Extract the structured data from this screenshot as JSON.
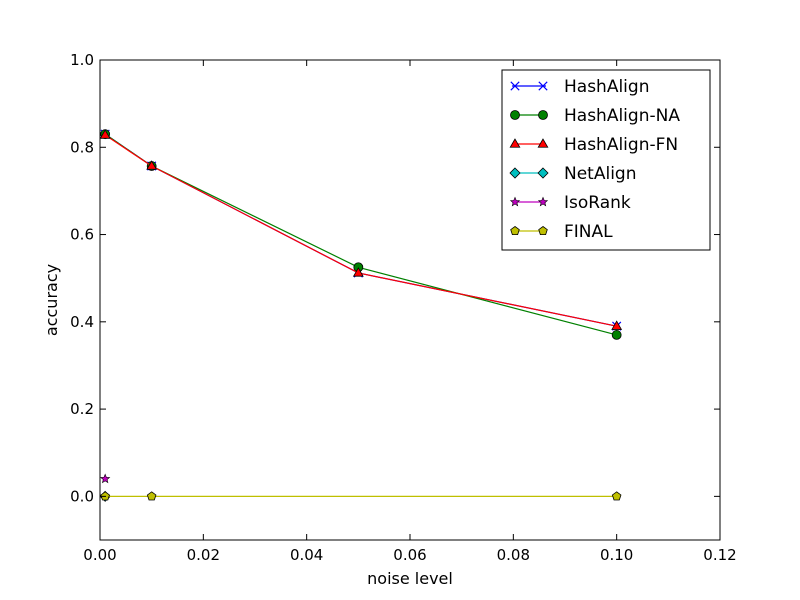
{
  "chart_data": {
    "type": "line",
    "title": "",
    "xlabel": "noise level",
    "ylabel": "accuracy",
    "xlim": [
      0,
      0.12
    ],
    "ylim": [
      -0.1,
      1.0
    ],
    "xticks": [
      0.0,
      0.02,
      0.04,
      0.06,
      0.08,
      0.1,
      0.12
    ],
    "xtick_labels": [
      "0.00",
      "0.02",
      "0.04",
      "0.06",
      "0.08",
      "0.10",
      "0.12"
    ],
    "yticks": [
      0.0,
      0.2,
      0.4,
      0.6,
      0.8,
      1.0
    ],
    "ytick_labels": [
      "0.0",
      "0.2",
      "0.4",
      "0.6",
      "0.8",
      "1.0"
    ],
    "grid": false,
    "legend_position": "top-right",
    "series": [
      {
        "name": "HashAlign",
        "color": "#0000ff",
        "marker": "x",
        "x": [
          0.001,
          0.01,
          0.05,
          0.1
        ],
        "y": [
          0.83,
          0.757,
          0.512,
          0.39
        ]
      },
      {
        "name": "HashAlign-NA",
        "color": "#008000",
        "marker": "circle",
        "x": [
          0.001,
          0.01,
          0.05,
          0.1
        ],
        "y": [
          0.83,
          0.757,
          0.525,
          0.37
        ]
      },
      {
        "name": "HashAlign-FN",
        "color": "#ff0000",
        "marker": "triangle",
        "x": [
          0.001,
          0.01,
          0.05,
          0.1
        ],
        "y": [
          0.828,
          0.757,
          0.512,
          0.39
        ]
      },
      {
        "name": "NetAlign",
        "color": "#00bfbf",
        "marker": "diamond",
        "x": [
          0.001
        ],
        "y": [
          0.0
        ]
      },
      {
        "name": "IsoRank",
        "color": "#bf00bf",
        "marker": "star",
        "x": [
          0.001
        ],
        "y": [
          0.04
        ]
      },
      {
        "name": "FINAL",
        "color": "#bfbf00",
        "marker": "pentagon",
        "x": [
          0.001,
          0.01,
          0.1
        ],
        "y": [
          0.0,
          0.0,
          0.0
        ]
      }
    ]
  }
}
